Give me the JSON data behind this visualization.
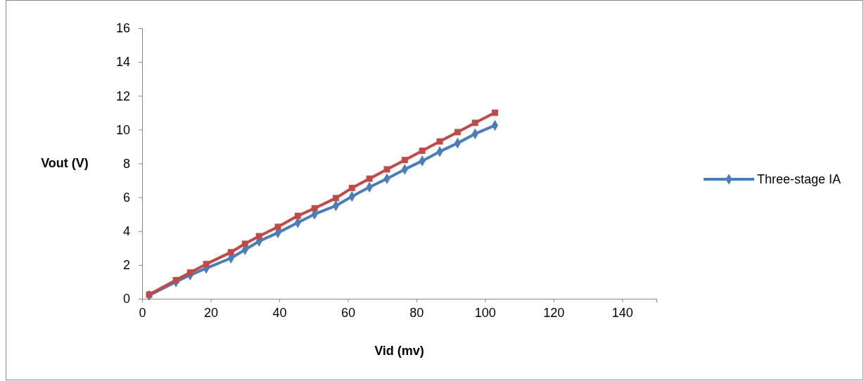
{
  "chart_data": {
    "type": "line",
    "xlabel": "Vid (mv)",
    "ylabel": "Vout (V)",
    "xlim": [
      0,
      150
    ],
    "xticks": [
      0,
      20,
      40,
      60,
      80,
      100,
      120,
      140
    ],
    "ylim": [
      0,
      16
    ],
    "yticks": [
      0,
      2,
      4,
      6,
      8,
      10,
      12,
      14,
      16
    ],
    "grid": false,
    "legend": "right",
    "x": [
      2.05,
      9.85,
      14,
      18.7,
      25.9,
      30,
      34.1,
      39.6,
      45.4,
      50.3,
      56.5,
      61.2,
      66.3,
      71.4,
      76.6,
      81.7,
      86.8,
      92,
      97.1,
      102.9
    ],
    "series": [
      {
        "name": "Three-stage IA",
        "color": "#4a7ebb",
        "marker": "diamond",
        "values": [
          0.2,
          1.0,
          1.4,
          1.8,
          2.4,
          2.9,
          3.4,
          3.9,
          4.5,
          5.0,
          5.5,
          6.05,
          6.6,
          7.1,
          7.65,
          8.15,
          8.7,
          9.2,
          9.75,
          10.25
        ]
      },
      {
        "color": "#be4b48",
        "marker": "square",
        "values": [
          0.25,
          1.1,
          1.55,
          2.05,
          2.75,
          3.25,
          3.7,
          4.25,
          4.9,
          5.35,
          5.95,
          6.55,
          7.1,
          7.65,
          8.2,
          8.75,
          9.3,
          9.85,
          10.4,
          11.0
        ]
      }
    ]
  }
}
